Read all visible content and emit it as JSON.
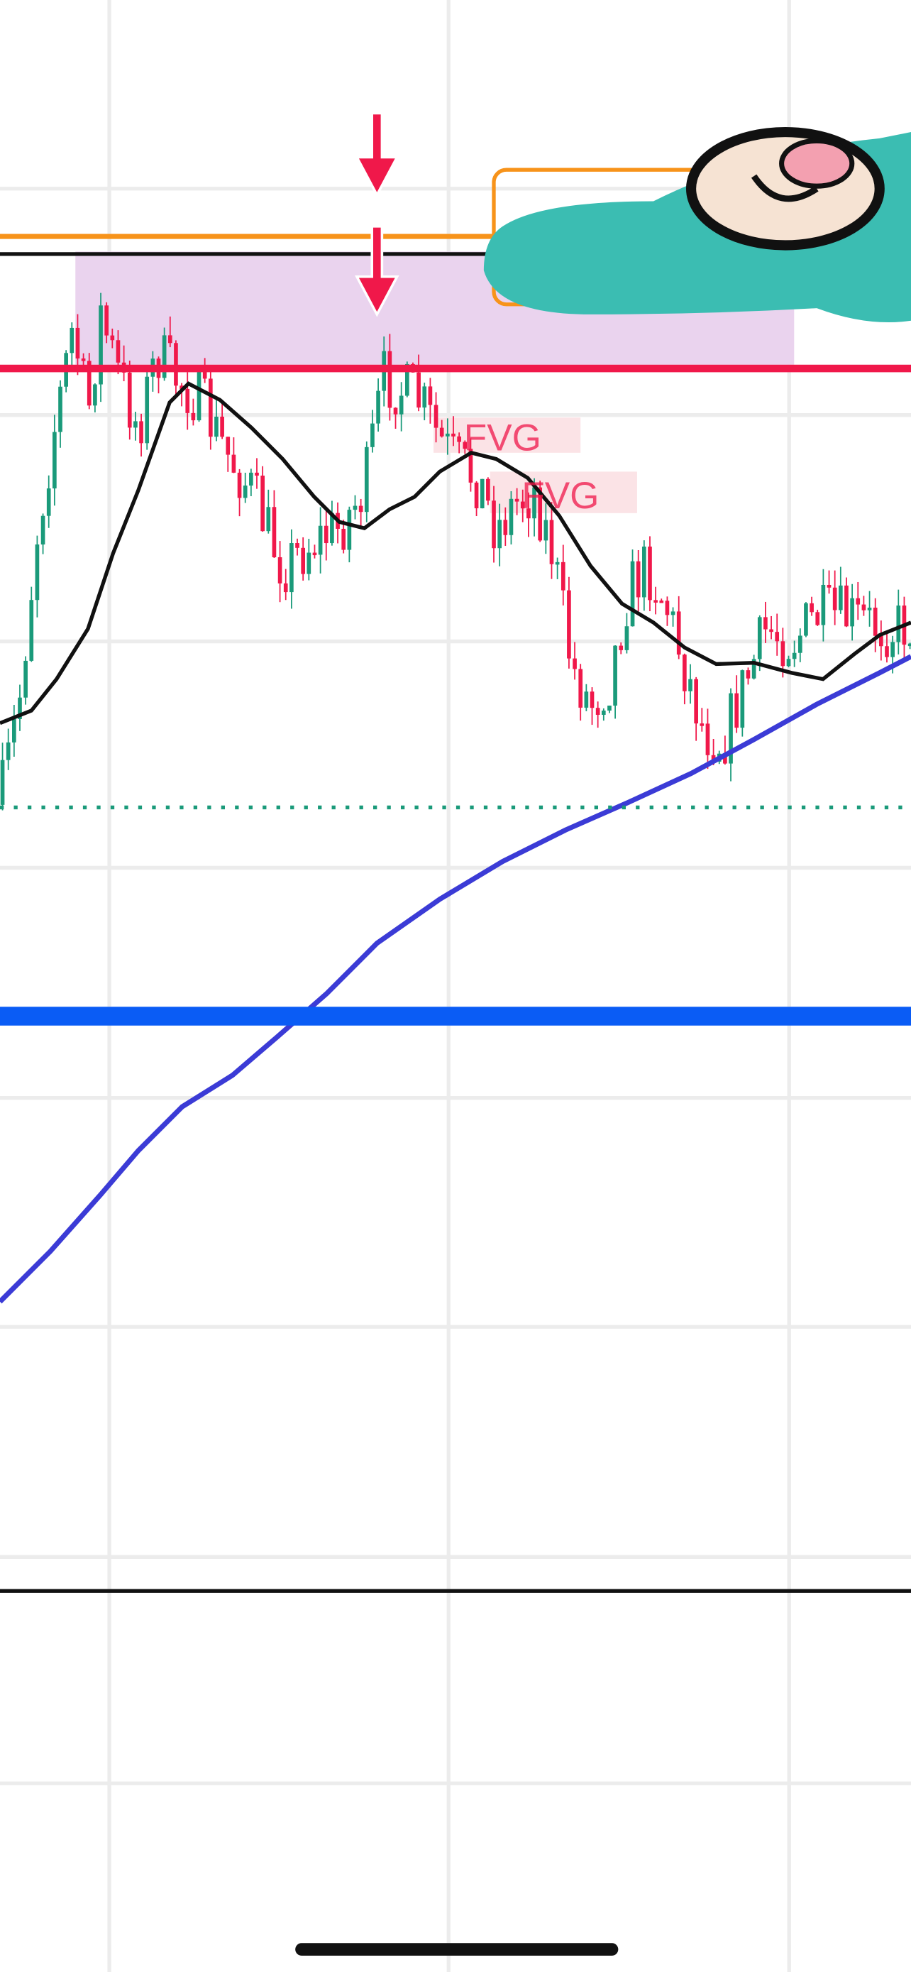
{
  "chart_labels": [
    "FVG",
    "FVG"
  ]
}
